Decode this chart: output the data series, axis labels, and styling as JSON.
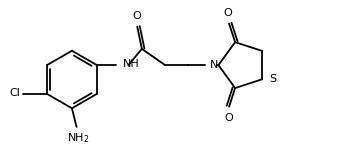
{
  "bg": "#ffffff",
  "lc": "#000000",
  "lw": 1.3,
  "fs": 8.0,
  "figw": 3.62,
  "figh": 1.59,
  "dpi": 100,
  "xlim": [
    0.0,
    7.8
  ],
  "ylim": [
    0.0,
    3.2
  ]
}
